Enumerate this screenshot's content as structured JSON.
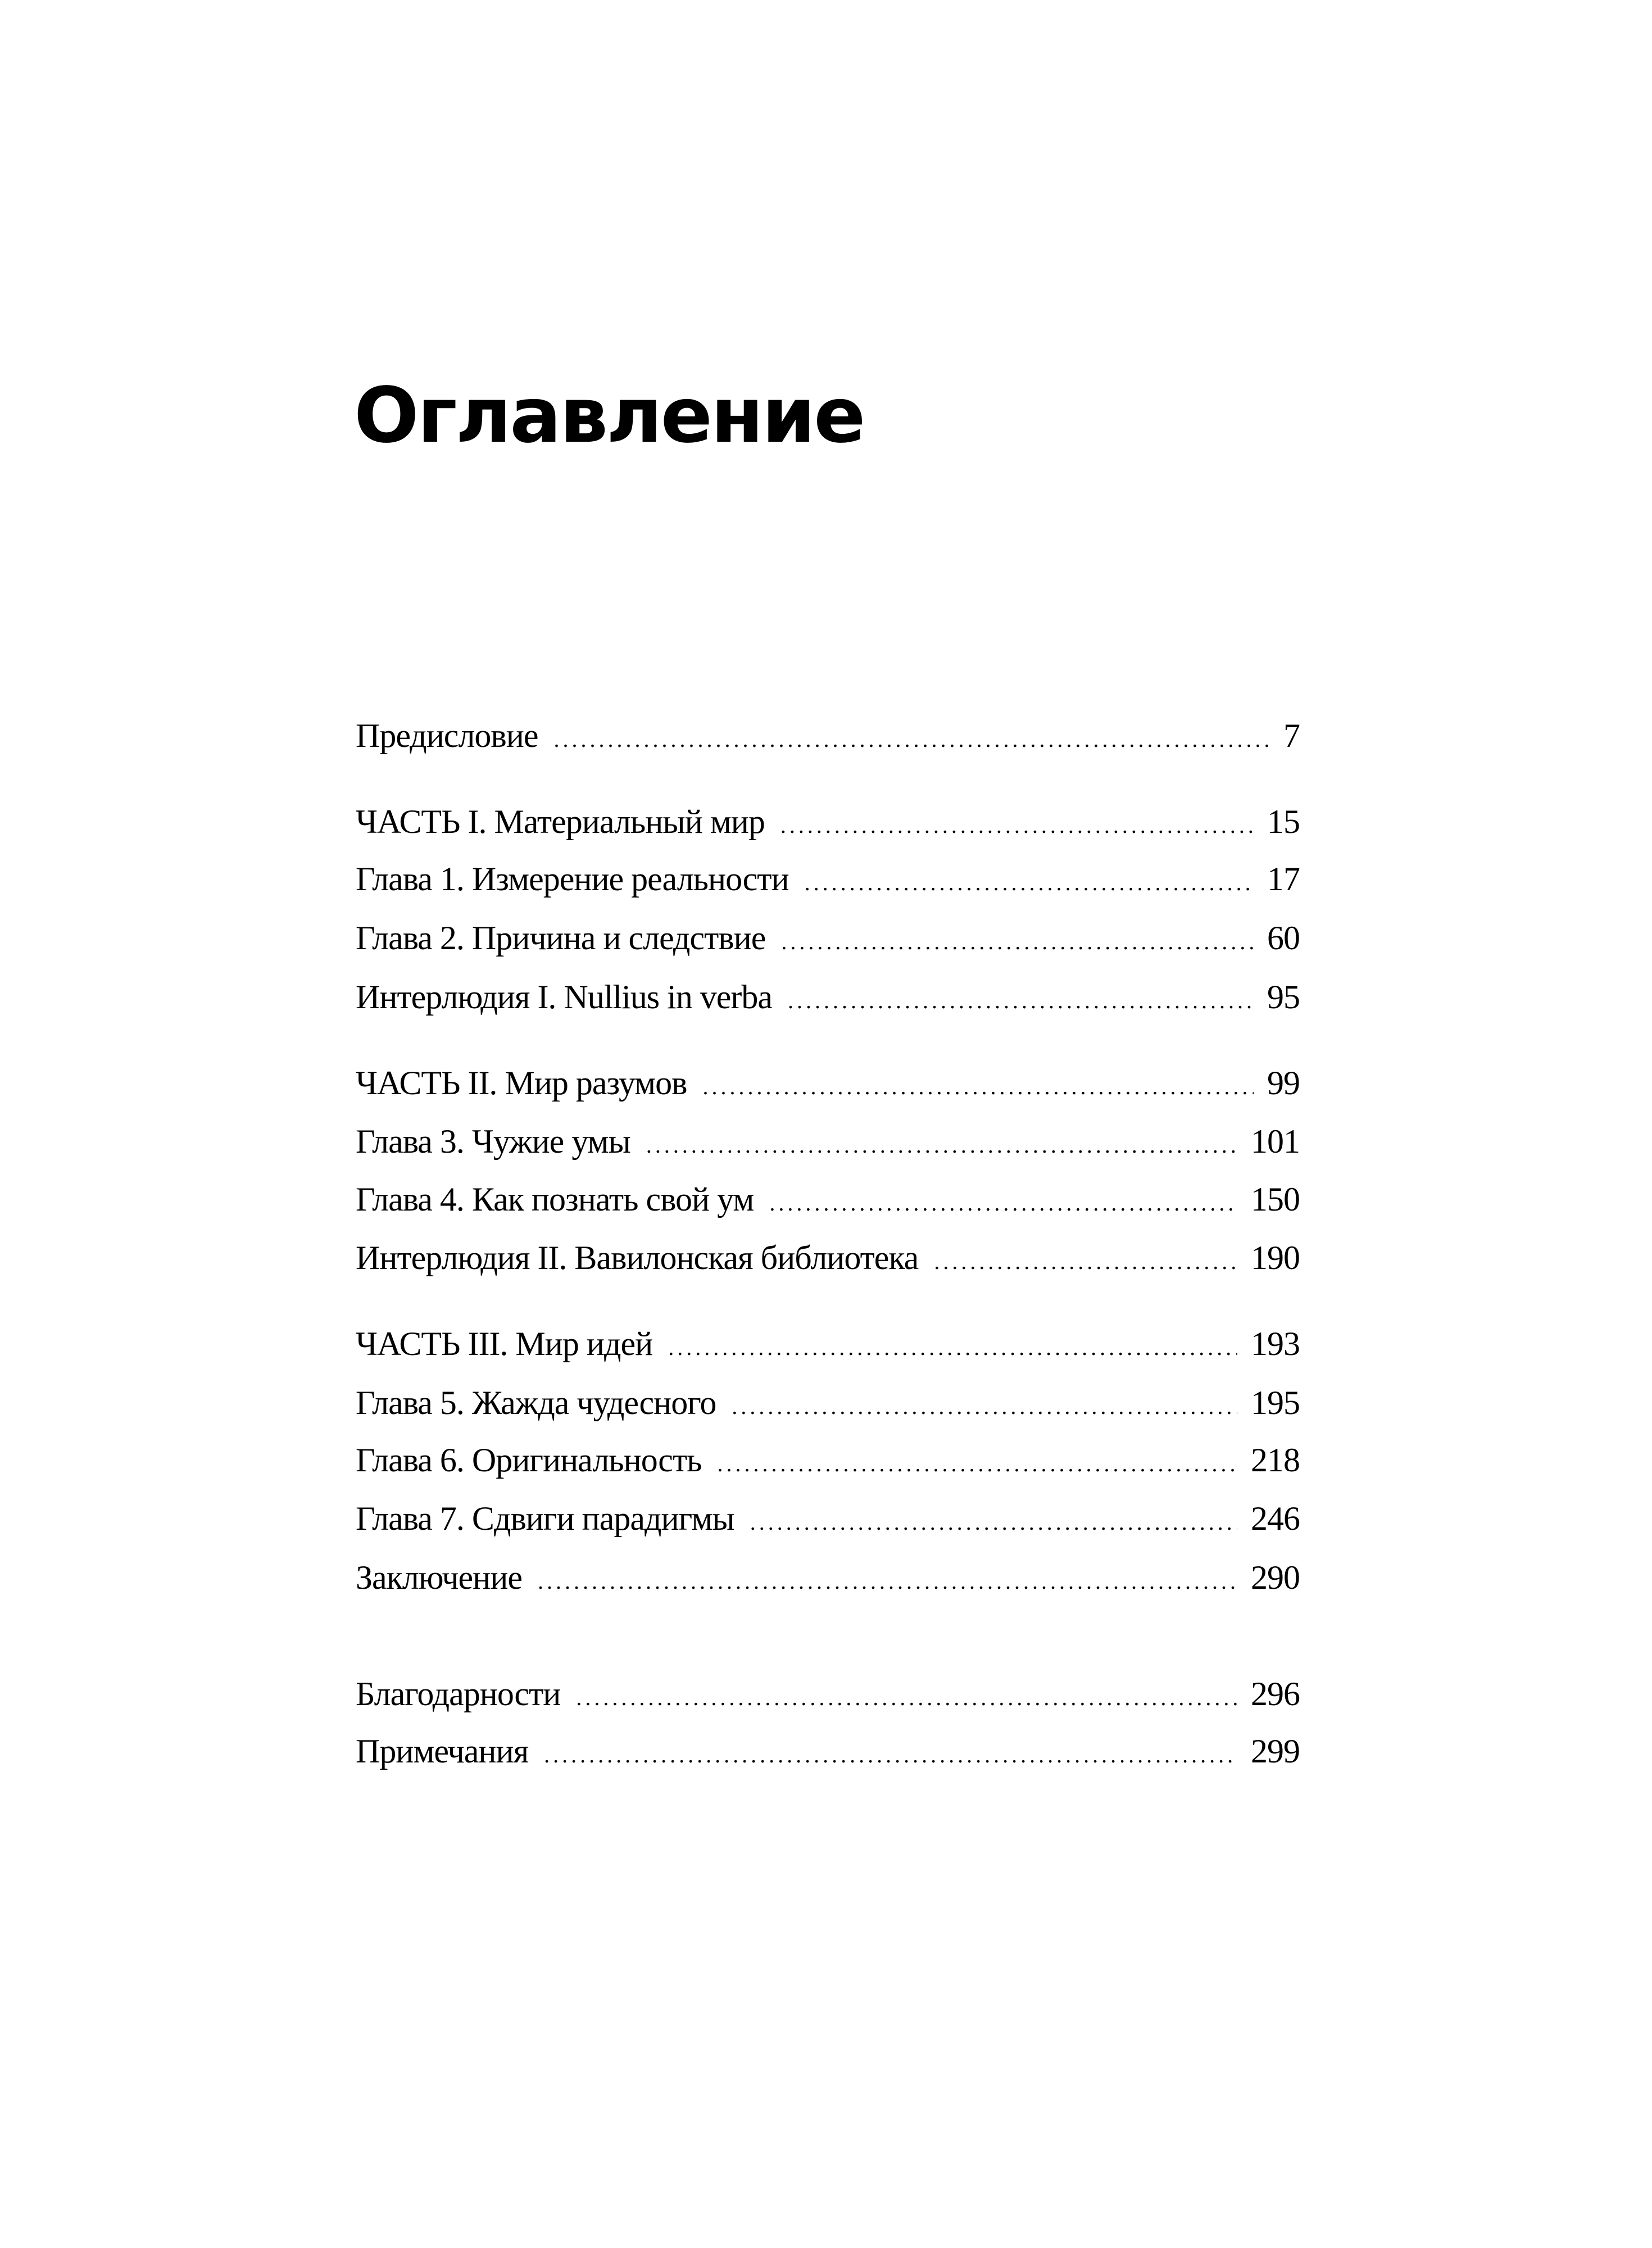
{
  "title": "Оглавление",
  "entries": [
    {
      "label": "Предисловие",
      "page": "7"
    },
    {
      "label": "ЧАСТЬ I. Материальный мир",
      "page": "15"
    },
    {
      "label": "Глава 1. Измерение реальности",
      "page": "17"
    },
    {
      "label": "Глава 2. Причина и следствие",
      "page": "60"
    },
    {
      "label": "Интерлюдия I. Nullius in verba",
      "page": "95"
    },
    {
      "label": "ЧАСТЬ II. Мир разумов",
      "page": "99"
    },
    {
      "label": "Глава 3. Чужие умы",
      "page": "101"
    },
    {
      "label": "Глава 4. Как познать свой ум",
      "page": "150"
    },
    {
      "label": "Интерлюдия II. Вавилонская библиотека",
      "page": "190"
    },
    {
      "label": "ЧАСТЬ III. Мир идей",
      "page": "193"
    },
    {
      "label": "Глава 5. Жажда чудесного",
      "page": "195"
    },
    {
      "label": "Глава 6. Оригинальность",
      "page": "218"
    },
    {
      "label": "Глава 7. Сдвиги парадигмы",
      "page": "246"
    },
    {
      "label": "Заключение",
      "page": "290"
    },
    {
      "label": "Благодарности",
      "page": "296"
    },
    {
      "label": "Примечания",
      "page": "299"
    }
  ]
}
